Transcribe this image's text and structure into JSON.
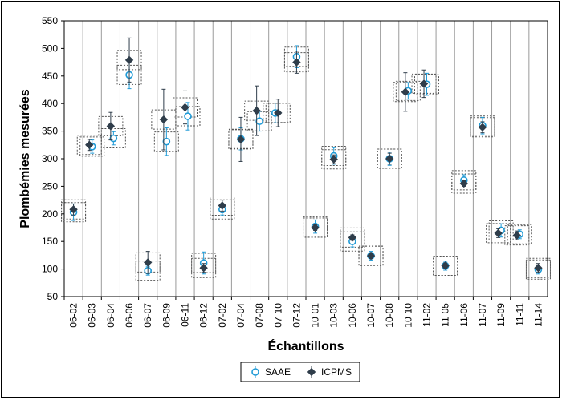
{
  "chart_data": {
    "type": "scatter",
    "xlabel": "Échantillons",
    "ylabel": "Plombémies mesurées",
    "ylim": [
      50,
      550
    ],
    "yticks": [
      50,
      100,
      150,
      200,
      250,
      300,
      350,
      400,
      450,
      500,
      550
    ],
    "grid": "vertical",
    "legend_position": "bottom",
    "colors": {
      "SAAE": "#1f9ad6",
      "ICPMS": "#2f3d4a",
      "box": "#555555"
    },
    "categories": [
      "06-02",
      "06-03",
      "06-04",
      "06-06",
      "06-07",
      "06-09",
      "06-11",
      "06-12",
      "07-02",
      "07-04",
      "07-08",
      "07-10",
      "07-12",
      "10-01",
      "10-03",
      "10-06",
      "10-07",
      "10-08",
      "10-10",
      "11-02",
      "11-05",
      "11-06",
      "11-07",
      "11-09",
      "11-11",
      "11-14"
    ],
    "series": [
      {
        "name": "SAAE",
        "marker": "circle",
        "x": [
          "06-02",
          "06-03",
          "06-04",
          "06-06",
          "06-07",
          "06-09",
          "06-11",
          "06-12",
          "07-02",
          "07-04",
          "07-08",
          "07-10",
          "07-12",
          "10-01",
          "10-03",
          "10-06",
          "10-07",
          "10-08",
          "10-10",
          "11-02",
          "11-05",
          "11-06",
          "11-07",
          "11-09",
          "11-11",
          "11-14"
        ],
        "x_offset": [
          0,
          0,
          0.15,
          0,
          0,
          0,
          0.15,
          0,
          0,
          0,
          0,
          -0.15,
          0,
          0,
          0,
          0,
          0,
          0,
          0,
          0,
          0,
          0,
          0,
          0,
          0,
          0
        ],
        "values": [
          203,
          322,
          337,
          452,
          97,
          331,
          377,
          111,
          208,
          336,
          368,
          383,
          485,
          177,
          305,
          150,
          124,
          300,
          423,
          435,
          106,
          261,
          360,
          170,
          163,
          99
        ],
        "err": [
          15,
          12,
          12,
          25,
          8,
          25,
          25,
          20,
          10,
          20,
          18,
          18,
          20,
          12,
          15,
          10,
          8,
          12,
          15,
          20,
          8,
          10,
          15,
          12,
          8,
          8
        ]
      },
      {
        "name": "ICPMS",
        "marker": "diamond",
        "x": [
          "06-02",
          "06-03",
          "06-04",
          "06-06",
          "06-07",
          "06-09",
          "06-11",
          "06-12",
          "07-02",
          "07-04",
          "07-08",
          "07-10",
          "07-12",
          "10-01",
          "10-03",
          "10-06",
          "10-07",
          "10-08",
          "10-10",
          "11-02",
          "11-05",
          "11-06",
          "11-07",
          "11-09",
          "11-11",
          "11-14"
        ],
        "x_offset": [
          0,
          -0.15,
          0,
          0,
          0,
          -0.15,
          0,
          0,
          0,
          0,
          -0.15,
          0,
          0,
          0,
          0,
          0,
          0,
          0,
          -0.15,
          -0.15,
          0,
          0,
          0,
          -0.15,
          -0.15,
          0
        ],
        "values": [
          208,
          325,
          359,
          479,
          112,
          371,
          393,
          102,
          215,
          335,
          387,
          383,
          475,
          175,
          299,
          157,
          124,
          300,
          421,
          436,
          106,
          255,
          357,
          165,
          161,
          102
        ],
        "err": [
          10,
          10,
          25,
          40,
          20,
          55,
          30,
          8,
          10,
          40,
          45,
          25,
          20,
          5,
          8,
          5,
          5,
          10,
          35,
          25,
          5,
          5,
          10,
          8,
          8,
          8
        ]
      }
    ]
  }
}
